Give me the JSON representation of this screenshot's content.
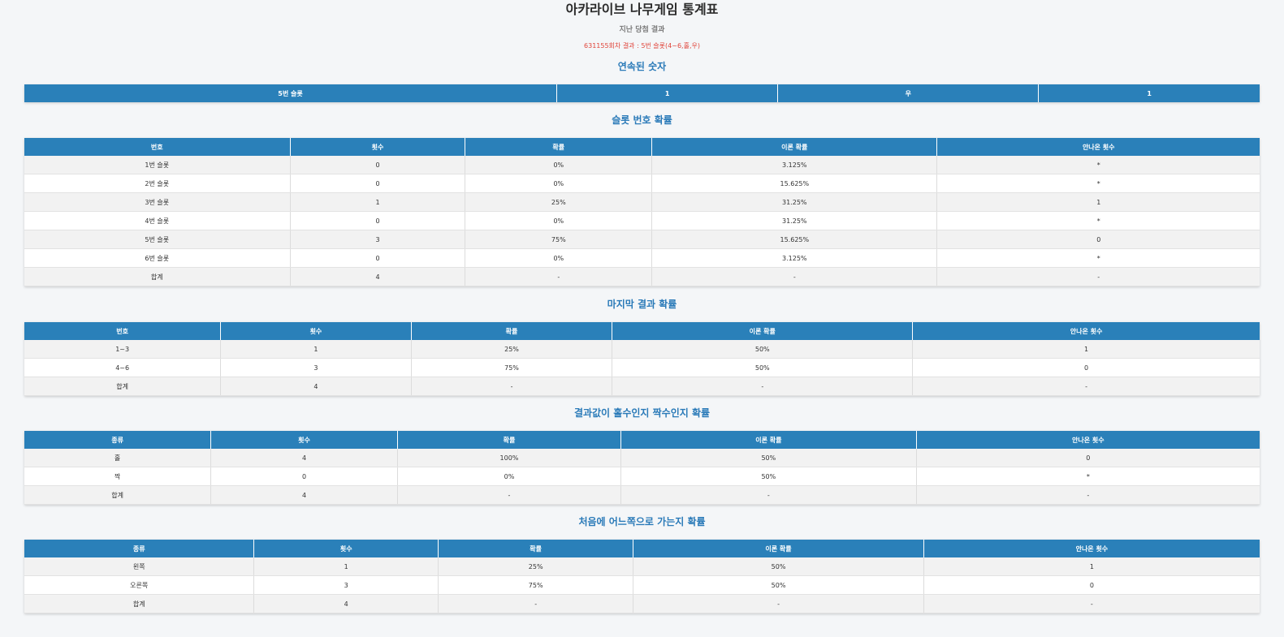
{
  "page": {
    "title": "아카라이브 나무게임 통계표",
    "subtitle": "지난 당첨 결과",
    "last_result": "631155회차 결과 : 5번 슬롯(4~6,홀,우)"
  },
  "streak": {
    "heading": "연속된 숫자",
    "cells": [
      "5번 슬롯",
      "1",
      "우",
      "1"
    ]
  },
  "slot_table": {
    "heading": "슬롯 번호 확률",
    "headers": [
      "번호",
      "횟수",
      "확률",
      "이론 확률",
      "안나온 횟수"
    ],
    "rows": [
      [
        "1번 슬롯",
        "0",
        "0%",
        "3.125%",
        "*"
      ],
      [
        "2번 슬롯",
        "0",
        "0%",
        "15.625%",
        "*"
      ],
      [
        "3번 슬롯",
        "1",
        "25%",
        "31.25%",
        "1"
      ],
      [
        "4번 슬롯",
        "0",
        "0%",
        "31.25%",
        "*"
      ],
      [
        "5번 슬롯",
        "3",
        "75%",
        "15.625%",
        "0"
      ],
      [
        "6번 슬롯",
        "0",
        "0%",
        "3.125%",
        "*"
      ],
      [
        "합계",
        "4",
        "-",
        "-",
        "-"
      ]
    ]
  },
  "range_table": {
    "heading": "마지막 결과 확률",
    "headers": [
      "번호",
      "횟수",
      "확률",
      "이론 확률",
      "안나온 횟수"
    ],
    "rows": [
      [
        "1~3",
        "1",
        "25%",
        "50%",
        "1"
      ],
      [
        "4~6",
        "3",
        "75%",
        "50%",
        "0"
      ],
      [
        "합계",
        "4",
        "-",
        "-",
        "-"
      ]
    ]
  },
  "parity_table": {
    "heading": "결과값이 홀수인지 짝수인지 확률",
    "headers": [
      "종류",
      "횟수",
      "확률",
      "이론 확률",
      "안나온 횟수"
    ],
    "rows": [
      [
        "홀",
        "4",
        "100%",
        "50%",
        "0"
      ],
      [
        "짝",
        "0",
        "0%",
        "50%",
        "*"
      ],
      [
        "합계",
        "4",
        "-",
        "-",
        "-"
      ]
    ]
  },
  "direction_table": {
    "heading": "처음에 어느쪽으로 가는지 확률",
    "headers": [
      "종류",
      "횟수",
      "확률",
      "이론 확률",
      "안나온 횟수"
    ],
    "rows": [
      [
        "왼쪽",
        "1",
        "25%",
        "50%",
        "1"
      ],
      [
        "오른쪽",
        "3",
        "75%",
        "50%",
        "0"
      ],
      [
        "합계",
        "4",
        "-",
        "-",
        "-"
      ]
    ]
  }
}
